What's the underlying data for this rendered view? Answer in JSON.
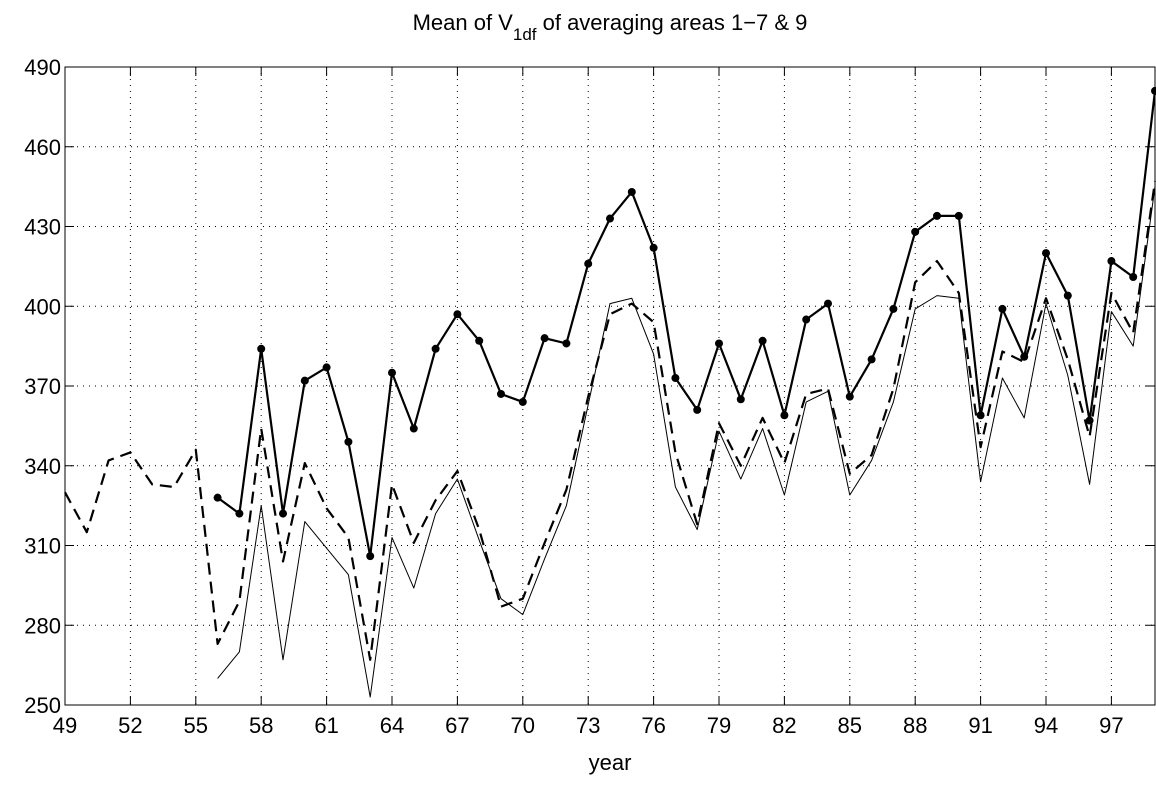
{
  "chart_data": {
    "type": "line",
    "title": "Mean of V",
    "title_subscript": "1df",
    "title_suffix": " of averaging areas 1−7 & 9",
    "xlabel": "year",
    "x": [
      49,
      50,
      51,
      52,
      53,
      54,
      55,
      56,
      57,
      58,
      59,
      60,
      61,
      62,
      63,
      64,
      65,
      66,
      67,
      68,
      69,
      70,
      71,
      72,
      73,
      74,
      75,
      76,
      77,
      78,
      79,
      80,
      81,
      82,
      83,
      84,
      85,
      86,
      87,
      88,
      89,
      90,
      91,
      92,
      93,
      94,
      95,
      96,
      97,
      98,
      99
    ],
    "xlim": [
      49,
      99
    ],
    "xticks": [
      49,
      52,
      55,
      58,
      61,
      64,
      67,
      70,
      73,
      76,
      79,
      82,
      85,
      88,
      91,
      94,
      97
    ],
    "ylim": [
      250,
      490
    ],
    "yticks": [
      250,
      280,
      310,
      340,
      370,
      400,
      430,
      460,
      490
    ],
    "grid": true,
    "series": [
      {
        "color": "#000000",
        "linewidth": 2.2,
        "dash": "solid",
        "marker": "circle",
        "values": [
          null,
          null,
          null,
          null,
          null,
          null,
          null,
          328,
          322,
          384,
          322,
          372,
          377,
          349,
          306,
          375,
          354,
          384,
          397,
          387,
          367,
          364,
          388,
          386,
          416,
          433,
          443,
          422,
          373,
          361,
          386,
          365,
          387,
          359,
          395,
          401,
          366,
          380,
          399,
          428,
          434,
          434,
          359,
          399,
          381,
          420,
          404,
          357,
          417,
          411,
          481
        ]
      },
      {
        "color": "#000000",
        "linewidth": 2.2,
        "dash": "dashed",
        "marker": "none",
        "values": [
          330,
          315,
          342,
          345,
          333,
          332,
          346,
          273,
          289,
          354,
          304,
          341,
          324,
          313,
          267,
          333,
          311,
          327,
          338,
          316,
          287,
          290,
          311,
          331,
          366,
          397,
          401,
          394,
          345,
          318,
          356,
          340,
          358,
          341,
          367,
          369,
          337,
          344,
          369,
          409,
          417,
          405,
          347,
          383,
          379,
          403,
          380,
          351,
          405,
          390,
          447
        ]
      },
      {
        "color": "#000000",
        "linewidth": 1,
        "dash": "solid",
        "marker": "none",
        "values": [
          null,
          null,
          null,
          null,
          null,
          null,
          null,
          260,
          270,
          325,
          267,
          319,
          309,
          299,
          253,
          313,
          294,
          322,
          335,
          312,
          290,
          284,
          305,
          325,
          363,
          401,
          403,
          382,
          332,
          316,
          353,
          335,
          354,
          329,
          364,
          368,
          329,
          342,
          364,
          399,
          404,
          403,
          334,
          373,
          358,
          401,
          374,
          333,
          398,
          385,
          445
        ]
      }
    ]
  }
}
